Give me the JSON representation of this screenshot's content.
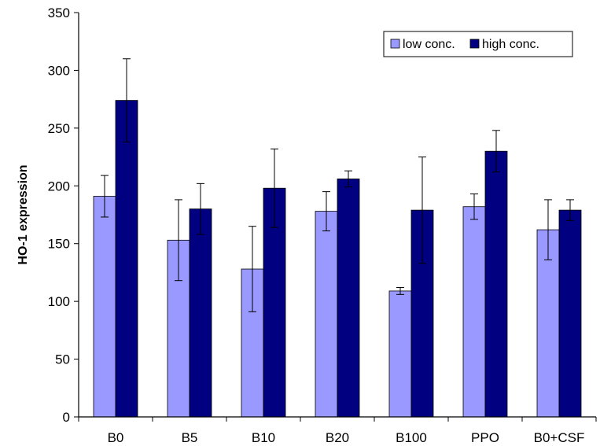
{
  "chart_data": {
    "type": "bar",
    "title": "",
    "xlabel": "",
    "ylabel": "HO-1 expression",
    "ylim": [
      0,
      350
    ],
    "yticks": [
      0,
      50,
      100,
      150,
      200,
      250,
      300,
      350
    ],
    "grid": false,
    "legend_position": "top-right",
    "categories": [
      "B0",
      "B5",
      "B10",
      "B20",
      "B100",
      "PPO",
      "B0+CSF"
    ],
    "series": [
      {
        "name": "low conc.",
        "color": "#9999ff",
        "values": [
          191,
          153,
          128,
          178,
          109,
          182,
          162
        ],
        "error": [
          18,
          35,
          37,
          17,
          3,
          11,
          26
        ]
      },
      {
        "name": "high conc.",
        "color": "#000080",
        "values": [
          274,
          180,
          198,
          206,
          179,
          230,
          179
        ],
        "error": [
          36,
          22,
          34,
          7,
          46,
          18,
          9
        ]
      }
    ]
  }
}
